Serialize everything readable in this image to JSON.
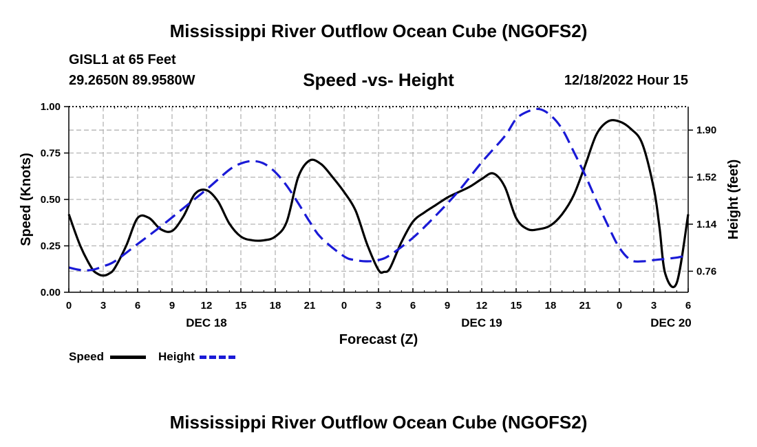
{
  "header": {
    "title": "Mississippi River Outflow Ocean Cube (NGOFS2)",
    "station": "GISL1 at 65 Feet",
    "coords": "29.2650N  89.9580W",
    "subtitle": "Speed -vs- Height",
    "timestamp": "12/18/2022 Hour 15"
  },
  "footer": {
    "title": "Mississippi River Outflow Ocean Cube (NGOFS2)"
  },
  "legend": {
    "speed_label": "Speed",
    "height_label": "Height"
  },
  "colors": {
    "speed": "#000000",
    "height": "#1a1ad6",
    "grid": "#b3b3b3"
  },
  "chart_data": {
    "type": "line",
    "title": "Speed -vs- Height",
    "xlabel": "Forecast (Z)",
    "ylabel": "Speed (Knots)",
    "y2label": "Height (feet)",
    "xlim": [
      0,
      54
    ],
    "ylim": [
      0,
      1.0
    ],
    "y2lim": [
      0.59,
      2.09
    ],
    "x_ticks": [
      0,
      3,
      6,
      9,
      12,
      15,
      18,
      21,
      24,
      27,
      30,
      33,
      36,
      39,
      42,
      45,
      48,
      51,
      54
    ],
    "x_tick_labels": [
      "0",
      "3",
      "6",
      "9",
      "12",
      "15",
      "18",
      "21",
      "0",
      "3",
      "6",
      "9",
      "12",
      "15",
      "18",
      "21",
      "0",
      "3",
      "6"
    ],
    "date_labels": [
      {
        "x": 12,
        "label": "DEC 18"
      },
      {
        "x": 36,
        "label": "DEC 19"
      },
      {
        "x": 52.5,
        "label": "DEC 20"
      }
    ],
    "y_ticks": [
      0.0,
      0.25,
      0.5,
      0.75,
      1.0
    ],
    "y_tick_labels": [
      "0.00",
      "0.25",
      "0.50",
      "0.75",
      "1.00"
    ],
    "y2_ticks": [
      0.76,
      1.14,
      1.52,
      1.9
    ],
    "y2_tick_labels": [
      "0.76",
      "1.14",
      "1.52",
      "1.90"
    ],
    "grid": true,
    "series": [
      {
        "name": "Speed",
        "axis": "left",
        "x": [
          0,
          1,
          2,
          2.5,
          3,
          3.5,
          4,
          5,
          6,
          7,
          8,
          9,
          10,
          11,
          12,
          13,
          14,
          15,
          16,
          17,
          18,
          19,
          20,
          21,
          22,
          23,
          24,
          25,
          26,
          27,
          27.5,
          28,
          29,
          30,
          31,
          32,
          33,
          34,
          35,
          36,
          37,
          38,
          39,
          40,
          41,
          42,
          43,
          44,
          45,
          46,
          47,
          48,
          49,
          50,
          51,
          51.5,
          52,
          53,
          54
        ],
        "values": [
          0.42,
          0.25,
          0.13,
          0.1,
          0.09,
          0.1,
          0.13,
          0.25,
          0.4,
          0.4,
          0.34,
          0.33,
          0.41,
          0.53,
          0.55,
          0.49,
          0.37,
          0.3,
          0.28,
          0.28,
          0.3,
          0.38,
          0.62,
          0.71,
          0.69,
          0.62,
          0.54,
          0.44,
          0.26,
          0.12,
          0.11,
          0.13,
          0.27,
          0.38,
          0.43,
          0.47,
          0.51,
          0.54,
          0.57,
          0.61,
          0.64,
          0.57,
          0.4,
          0.34,
          0.34,
          0.36,
          0.42,
          0.52,
          0.68,
          0.85,
          0.92,
          0.92,
          0.88,
          0.8,
          0.56,
          0.35,
          0.1,
          0.05,
          0.42
        ]
      },
      {
        "name": "Height",
        "axis": "right",
        "x": [
          0,
          1,
          2,
          3,
          4,
          6,
          8,
          10,
          12,
          14,
          15,
          16,
          17,
          18,
          19,
          20,
          21,
          22,
          24,
          25,
          26,
          27,
          28,
          30,
          32,
          34,
          36,
          38,
          39,
          40,
          41,
          42,
          43,
          44,
          45,
          46,
          47,
          48,
          49,
          50,
          51,
          52,
          53,
          54
        ],
        "values": [
          0.79,
          0.77,
          0.77,
          0.8,
          0.84,
          0.98,
          1.12,
          1.27,
          1.42,
          1.58,
          1.63,
          1.65,
          1.63,
          1.56,
          1.45,
          1.31,
          1.16,
          1.03,
          0.88,
          0.85,
          0.84,
          0.85,
          0.89,
          1.03,
          1.21,
          1.41,
          1.64,
          1.85,
          1.99,
          2.05,
          2.07,
          2.02,
          1.91,
          1.73,
          1.54,
          1.33,
          1.13,
          0.95,
          0.85,
          0.84,
          0.85,
          0.86,
          0.87,
          0.89
        ]
      }
    ]
  }
}
